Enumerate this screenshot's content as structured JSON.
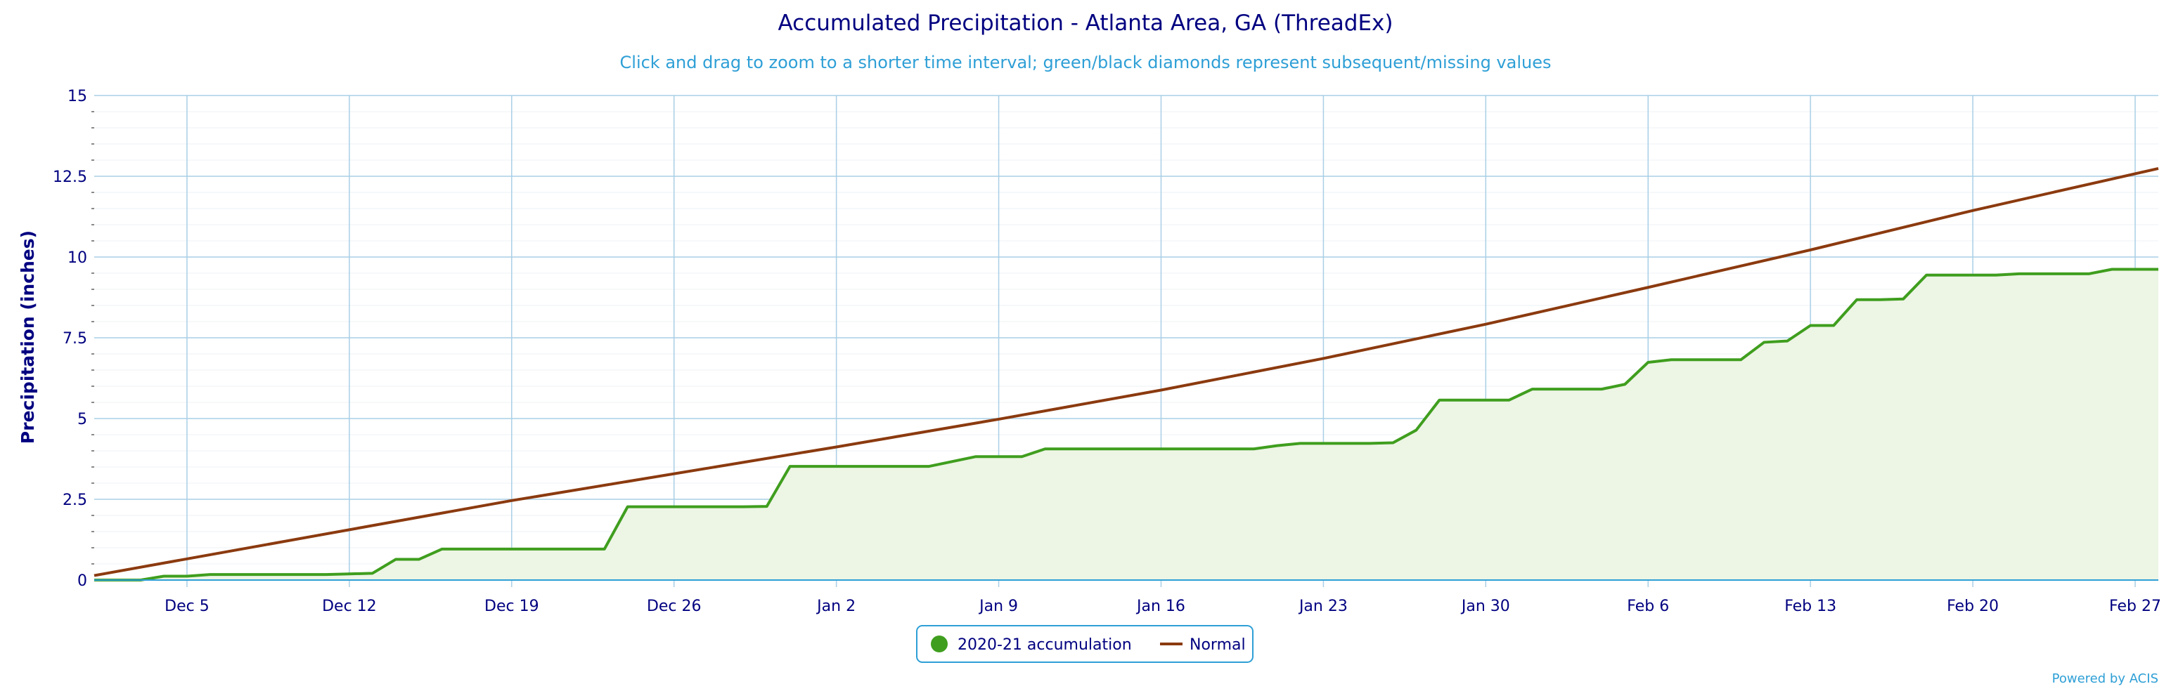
{
  "chart_data": {
    "type": "area",
    "title": "Accumulated Precipitation - Atlanta Area, GA (ThreadEx)",
    "subtitle": "Click and drag to zoom to a shorter time interval; green/black diamonds represent subsequent/missing values",
    "ylabel": "Precipitation (inches)",
    "xlabel": "",
    "ylim": [
      0,
      15
    ],
    "yticks": [
      "0",
      "2.5",
      "5",
      "7.5",
      "10",
      "12.5",
      "15"
    ],
    "x_range": [
      "2020-12-01",
      "2021-02-28"
    ],
    "x_ticks": [
      {
        "date": "2020-12-05",
        "label": "Dec 5"
      },
      {
        "date": "2020-12-12",
        "label": "Dec 12"
      },
      {
        "date": "2020-12-19",
        "label": "Dec 19"
      },
      {
        "date": "2020-12-26",
        "label": "Dec 26"
      },
      {
        "date": "2021-01-02",
        "label": "Jan 2"
      },
      {
        "date": "2021-01-09",
        "label": "Jan 9"
      },
      {
        "date": "2021-01-16",
        "label": "Jan 16"
      },
      {
        "date": "2021-01-23",
        "label": "Jan 23"
      },
      {
        "date": "2021-01-30",
        "label": "Jan 30"
      },
      {
        "date": "2021-02-06",
        "label": "Feb 6"
      },
      {
        "date": "2021-02-13",
        "label": "Feb 13"
      },
      {
        "date": "2021-02-20",
        "label": "Feb 20"
      },
      {
        "date": "2021-02-27",
        "label": "Feb 27"
      }
    ],
    "grid": true,
    "legend_position": "bottom-center",
    "series": [
      {
        "name": "2020-21 accumulation",
        "color": "#3f9e1e",
        "fill": "#edf5e5",
        "points": [
          [
            "2020-12-01",
            0.0
          ],
          [
            "2020-12-02",
            0.0
          ],
          [
            "2020-12-03",
            0.0
          ],
          [
            "2020-12-04",
            0.12
          ],
          [
            "2020-12-05",
            0.12
          ],
          [
            "2020-12-06",
            0.17
          ],
          [
            "2020-12-07",
            0.17
          ],
          [
            "2020-12-08",
            0.17
          ],
          [
            "2020-12-09",
            0.17
          ],
          [
            "2020-12-10",
            0.17
          ],
          [
            "2020-12-11",
            0.17
          ],
          [
            "2020-12-12",
            0.19
          ],
          [
            "2020-12-13",
            0.21
          ],
          [
            "2020-12-14",
            0.64
          ],
          [
            "2020-12-15",
            0.64
          ],
          [
            "2020-12-16",
            0.96
          ],
          [
            "2020-12-17",
            0.96
          ],
          [
            "2020-12-18",
            0.96
          ],
          [
            "2020-12-19",
            0.96
          ],
          [
            "2020-12-20",
            0.96
          ],
          [
            "2020-12-21",
            0.96
          ],
          [
            "2020-12-22",
            0.96
          ],
          [
            "2020-12-23",
            0.96
          ],
          [
            "2020-12-24",
            2.27
          ],
          [
            "2020-12-25",
            2.27
          ],
          [
            "2020-12-26",
            2.27
          ],
          [
            "2020-12-27",
            2.27
          ],
          [
            "2020-12-28",
            2.27
          ],
          [
            "2020-12-29",
            2.27
          ],
          [
            "2020-12-30",
            2.28
          ],
          [
            "2020-12-31",
            3.52
          ],
          [
            "2021-01-01",
            3.52
          ],
          [
            "2021-01-02",
            3.52
          ],
          [
            "2021-01-03",
            3.52
          ],
          [
            "2021-01-04",
            3.52
          ],
          [
            "2021-01-05",
            3.52
          ],
          [
            "2021-01-06",
            3.52
          ],
          [
            "2021-01-07",
            3.67
          ],
          [
            "2021-01-08",
            3.82
          ],
          [
            "2021-01-09",
            3.82
          ],
          [
            "2021-01-10",
            3.82
          ],
          [
            "2021-01-11",
            4.06
          ],
          [
            "2021-01-12",
            4.06
          ],
          [
            "2021-01-13",
            4.06
          ],
          [
            "2021-01-14",
            4.06
          ],
          [
            "2021-01-15",
            4.06
          ],
          [
            "2021-01-16",
            4.06
          ],
          [
            "2021-01-17",
            4.06
          ],
          [
            "2021-01-18",
            4.06
          ],
          [
            "2021-01-19",
            4.06
          ],
          [
            "2021-01-20",
            4.06
          ],
          [
            "2021-01-21",
            4.16
          ],
          [
            "2021-01-22",
            4.23
          ],
          [
            "2021-01-23",
            4.23
          ],
          [
            "2021-01-24",
            4.23
          ],
          [
            "2021-01-25",
            4.23
          ],
          [
            "2021-01-26",
            4.25
          ],
          [
            "2021-01-27",
            4.64
          ],
          [
            "2021-01-28",
            5.57
          ],
          [
            "2021-01-29",
            5.57
          ],
          [
            "2021-01-30",
            5.57
          ],
          [
            "2021-01-31",
            5.57
          ],
          [
            "2021-02-01",
            5.91
          ],
          [
            "2021-02-02",
            5.91
          ],
          [
            "2021-02-03",
            5.91
          ],
          [
            "2021-02-04",
            5.91
          ],
          [
            "2021-02-05",
            6.06
          ],
          [
            "2021-02-06",
            6.74
          ],
          [
            "2021-02-07",
            6.82
          ],
          [
            "2021-02-08",
            6.82
          ],
          [
            "2021-02-09",
            6.82
          ],
          [
            "2021-02-10",
            6.82
          ],
          [
            "2021-02-11",
            7.36
          ],
          [
            "2021-02-12",
            7.4
          ],
          [
            "2021-02-13",
            7.88
          ],
          [
            "2021-02-14",
            7.88
          ],
          [
            "2021-02-15",
            8.68
          ],
          [
            "2021-02-16",
            8.68
          ],
          [
            "2021-02-17",
            8.7
          ],
          [
            "2021-02-18",
            9.44
          ],
          [
            "2021-02-19",
            9.44
          ],
          [
            "2021-02-20",
            9.44
          ],
          [
            "2021-02-21",
            9.44
          ],
          [
            "2021-02-22",
            9.48
          ],
          [
            "2021-02-23",
            9.48
          ],
          [
            "2021-02-24",
            9.48
          ],
          [
            "2021-02-25",
            9.48
          ],
          [
            "2021-02-26",
            9.62
          ],
          [
            "2021-02-27",
            9.62
          ],
          [
            "2021-02-28",
            9.62
          ]
        ]
      },
      {
        "name": "Normal",
        "color": "#8b3a0f",
        "points": [
          [
            "2020-12-01",
            0.14
          ],
          [
            "2020-12-19",
            2.46
          ],
          [
            "2021-01-02",
            4.12
          ],
          [
            "2021-01-09",
            4.98
          ],
          [
            "2021-01-16",
            5.88
          ],
          [
            "2021-01-23",
            6.86
          ],
          [
            "2021-01-30",
            7.92
          ],
          [
            "2021-02-06",
            9.06
          ],
          [
            "2021-02-13",
            10.22
          ],
          [
            "2021-02-20",
            11.44
          ],
          [
            "2021-02-28",
            12.74
          ]
        ]
      }
    ]
  },
  "credits": "Powered by ACIS"
}
